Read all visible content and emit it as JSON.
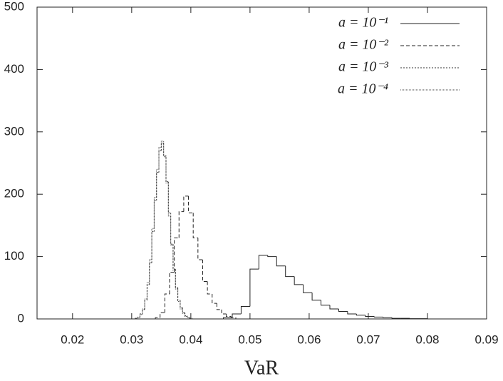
{
  "chart_data": {
    "type": "histogram",
    "x_label": "VaR",
    "xlim": [
      0.014,
      0.09
    ],
    "xticks": [
      0.02,
      0.03,
      0.04,
      0.05,
      0.06,
      0.07,
      0.08,
      0.09
    ],
    "ylim": [
      0,
      500
    ],
    "yticks": [
      0,
      100,
      200,
      300,
      400,
      500
    ],
    "legend": "top-right",
    "series": [
      {
        "name": "a = 10⁻¹",
        "color": "#222222",
        "dash": "none",
        "bins": [
          0.0455,
          0.047,
          0.0485,
          0.05,
          0.0515,
          0.053,
          0.0545,
          0.056,
          0.0575,
          0.059,
          0.0605,
          0.062,
          0.0635,
          0.065,
          0.0665,
          0.068,
          0.0695,
          0.071,
          0.0725,
          0.074,
          0.0755,
          0.077,
          0.0785,
          0.08
        ],
        "values": [
          2,
          8,
          20,
          80,
          102,
          100,
          85,
          68,
          55,
          42,
          30,
          22,
          16,
          12,
          8,
          6,
          4,
          3,
          2,
          1,
          1,
          0.5,
          0.5
        ]
      },
      {
        "name": "a = 10⁻²",
        "color": "#222222",
        "dash": "5,3",
        "bins": [
          0.034,
          0.0348,
          0.0356,
          0.0364,
          0.0372,
          0.038,
          0.0388,
          0.0396,
          0.0404,
          0.0412,
          0.042,
          0.0428,
          0.0436,
          0.0444,
          0.0452,
          0.046,
          0.0468,
          0.0476
        ],
        "values": [
          2,
          10,
          40,
          75,
          130,
          172,
          197,
          170,
          130,
          95,
          60,
          40,
          25,
          15,
          8,
          4,
          2
        ]
      },
      {
        "name": "a = 10⁻³",
        "color": "#333333",
        "dash": "2,2",
        "bins": [
          0.0306,
          0.031,
          0.0314,
          0.0318,
          0.0322,
          0.0326,
          0.033,
          0.0334,
          0.0338,
          0.0342,
          0.0346,
          0.035,
          0.0354,
          0.0358,
          0.0362,
          0.0366,
          0.037,
          0.0374,
          0.0378,
          0.0382,
          0.0386,
          0.039,
          0.0394,
          0.0398,
          0.0402
        ],
        "values": [
          1,
          3,
          8,
          15,
          30,
          55,
          90,
          140,
          190,
          235,
          270,
          282,
          260,
          220,
          170,
          120,
          80,
          50,
          30,
          18,
          10,
          5,
          2,
          1
        ]
      },
      {
        "name": "a = 10⁻⁴",
        "color": "#444444",
        "dash": "1,1",
        "bins": [
          0.0306,
          0.031,
          0.0314,
          0.0318,
          0.0322,
          0.0326,
          0.033,
          0.0334,
          0.0338,
          0.0342,
          0.0346,
          0.035,
          0.0354,
          0.0358,
          0.0362,
          0.0366,
          0.037,
          0.0374,
          0.0378,
          0.0382,
          0.0386,
          0.039,
          0.0394,
          0.0398,
          0.0402
        ],
        "values": [
          1,
          2,
          7,
          16,
          32,
          58,
          95,
          145,
          195,
          240,
          275,
          285,
          262,
          218,
          165,
          118,
          78,
          48,
          28,
          16,
          9,
          4,
          2,
          1
        ]
      }
    ]
  }
}
